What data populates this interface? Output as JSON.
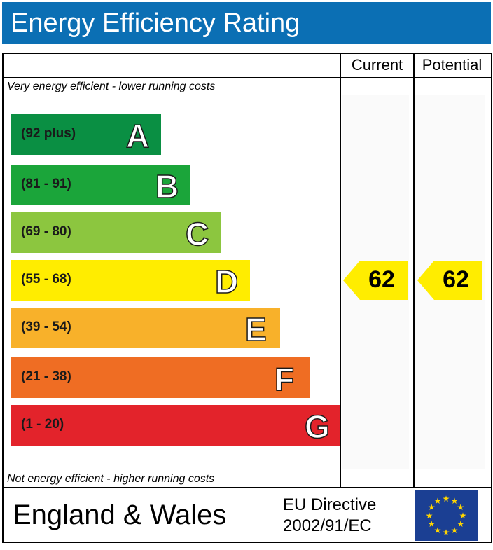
{
  "title": "Energy Efficiency Rating",
  "columns": {
    "current": "Current",
    "potential": "Potential"
  },
  "captions": {
    "top": "Very energy efficient - lower running costs",
    "bottom": "Not energy efficient - higher running costs"
  },
  "chart_data": {
    "type": "bar",
    "categories": [
      "A",
      "B",
      "C",
      "D",
      "E",
      "F",
      "G"
    ],
    "ranges": [
      "(92 plus)",
      "(81 - 91)",
      "(69 - 80)",
      "(55 - 68)",
      "(39 - 54)",
      "(21 - 38)",
      "(1 - 20)"
    ],
    "colors": [
      "#0a8f43",
      "#1ba53a",
      "#8cc63f",
      "#ffed00",
      "#f8b12a",
      "#ef6d23",
      "#e3232b"
    ],
    "current_rating": 62,
    "potential_rating": 62,
    "pointer_color": "#ffed00"
  },
  "footer": {
    "region": "England & Wales",
    "directive_line1": "EU Directive",
    "directive_line2": "2002/91/EC",
    "flag_icon": "eu-flag-icon"
  }
}
